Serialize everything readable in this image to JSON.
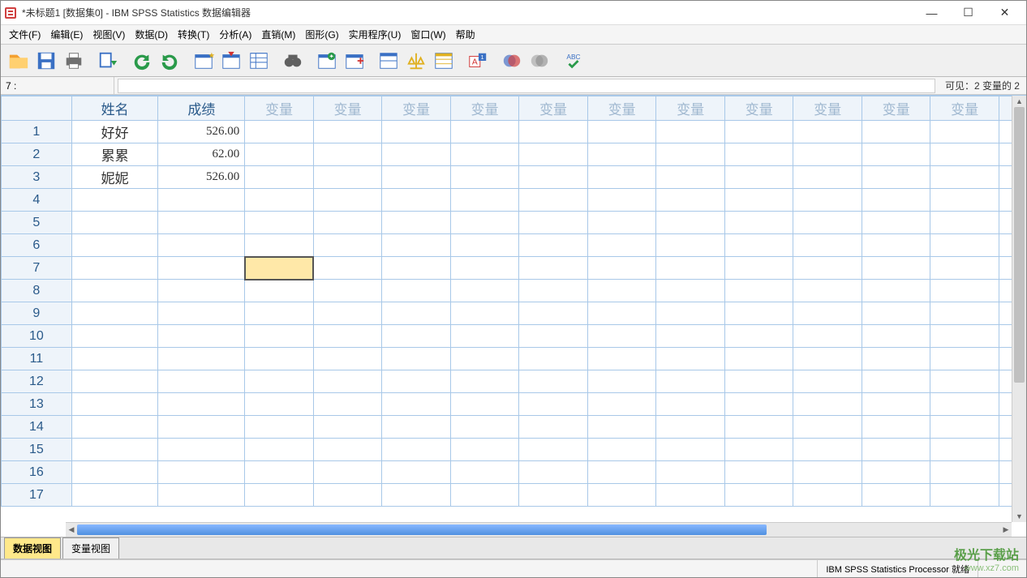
{
  "window": {
    "title": "*未标题1 [数据集0] - IBM SPSS Statistics 数据编辑器"
  },
  "menu": {
    "items": [
      "文件(F)",
      "编辑(E)",
      "视图(V)",
      "数据(D)",
      "转换(T)",
      "分析(A)",
      "直销(M)",
      "图形(G)",
      "实用程序(U)",
      "窗口(W)",
      "帮助"
    ]
  },
  "cellbar": {
    "ref": "7 :",
    "visible_text": "可见：2 变量的 2"
  },
  "columns": {
    "corner": "",
    "defined": [
      "姓名",
      "成绩"
    ],
    "empty_label": "变量",
    "empty_count": 13,
    "col_width_rownum": 78,
    "col_width_data": 96
  },
  "rows": {
    "count": 17,
    "data": [
      {
        "n": 1,
        "name": "好好",
        "score": "526.00"
      },
      {
        "n": 2,
        "name": "累累",
        "score": "62.00"
      },
      {
        "n": 3,
        "name": "妮妮",
        "score": "526.00"
      }
    ],
    "selected": {
      "row": 7,
      "col": 3
    }
  },
  "tabs": {
    "items": [
      "数据视图",
      "变量视图"
    ],
    "active": 0
  },
  "status": {
    "processor": "IBM SPSS Statistics Processor 就绪"
  },
  "colors": {
    "grid_border": "#a8c8e8",
    "header_bg": "#eef4fa",
    "header_fg": "#2a5a8a",
    "empty_var_fg": "#a0b8d0",
    "selected_bg": "#ffe8a8",
    "active_tab_bg": "#ffe88a",
    "hscroll_thumb": "#5090e0"
  },
  "toolbar_icons": [
    {
      "name": "open-icon",
      "fill": "#f4a030",
      "shape": "folder"
    },
    {
      "name": "save-icon",
      "fill": "#3a70c4",
      "shape": "disk"
    },
    {
      "name": "print-icon",
      "fill": "#707070",
      "shape": "printer"
    },
    {
      "name": "recall-dialog-icon",
      "fill": "#3a70c4",
      "shape": "grid-arrow"
    },
    {
      "name": "undo-icon",
      "fill": "#2a9a4a",
      "shape": "undo"
    },
    {
      "name": "redo-icon",
      "fill": "#2a9a4a",
      "shape": "redo"
    },
    {
      "name": "goto-case-icon",
      "fill": "#3a70c4",
      "shape": "grid-star"
    },
    {
      "name": "goto-variable-icon",
      "fill": "#d03030",
      "shape": "grid-down"
    },
    {
      "name": "variables-icon",
      "fill": "#3a70c4",
      "shape": "grid-list"
    },
    {
      "name": "find-icon",
      "fill": "#606060",
      "shape": "binoculars"
    },
    {
      "name": "insert-case-icon",
      "fill": "#3a70c4",
      "shape": "grid-plus-green"
    },
    {
      "name": "insert-variable-icon",
      "fill": "#3a70c4",
      "shape": "grid-plus-blue"
    },
    {
      "name": "split-file-icon",
      "fill": "#3a70c4",
      "shape": "grid-split"
    },
    {
      "name": "weight-cases-icon",
      "fill": "#e0b020",
      "shape": "scale"
    },
    {
      "name": "select-cases-icon",
      "fill": "#e0b020",
      "shape": "grid-filter"
    },
    {
      "name": "value-labels-icon",
      "fill": "#d03030",
      "shape": "label-a"
    },
    {
      "name": "use-sets-icon",
      "fill": "#4a70c4",
      "shape": "venn"
    },
    {
      "name": "show-all-icon",
      "fill": "#a0a0a0",
      "shape": "venn-grey"
    },
    {
      "name": "spellcheck-icon",
      "fill": "#2a9a4a",
      "shape": "abc-check"
    }
  ],
  "watermark": {
    "line1": "极光下载站",
    "line2": "www.xz7.com"
  }
}
